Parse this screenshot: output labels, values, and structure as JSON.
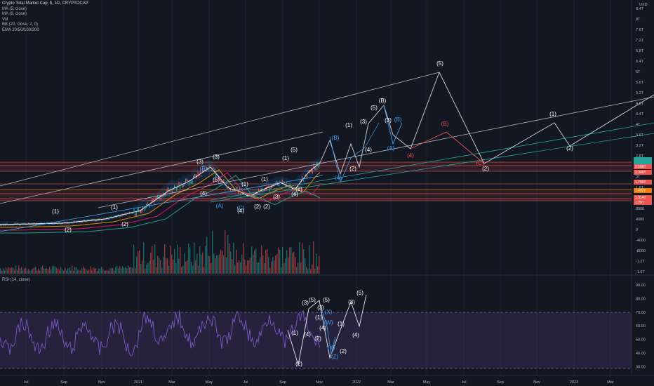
{
  "legend": {
    "symbol": "Crypto Total Market Cap, $, 1D, CRYPTOCAP",
    "indicators": [
      "MA (5, close)",
      "MA (8, close)",
      "Vol",
      "BB (20, close, 2, 0)",
      "EMA 20/50/100/200"
    ]
  },
  "rsi": {
    "label": "RSI (14, close)"
  },
  "price_axis": {
    "currency": "USD",
    "ticks": [
      "8.4T",
      "8T",
      "7.6T",
      "7.2T",
      "6.8T",
      "6.4T",
      "6T",
      "5.6T",
      "5.2T",
      "4.8T",
      "4.4T",
      "4T",
      "3.6T",
      "3.2T",
      "2.8T",
      "2.4T",
      "2T",
      "1.6T",
      "1.2T",
      "8000",
      "4000",
      "0",
      "-4000",
      "-8000",
      "-1.2T",
      "-1.6T"
    ],
    "badges": [
      {
        "text": "2.588T",
        "color": "#ef5350"
      },
      {
        "text": "2.349T",
        "color": "#ef5350"
      },
      {
        "text": "1.755T",
        "color": "#ef5350"
      },
      {
        "text": "1.482T",
        "color": "#f57c00"
      },
      {
        "text": "1.314T",
        "color": "#ef5350"
      },
      {
        "text": "1.29T",
        "color": "#ef5350"
      }
    ],
    "current_color": "#26a69a"
  },
  "rsi_axis": {
    "ticks": [
      "90.00",
      "80.00",
      "70.00",
      "60.00",
      "50.00",
      "40.00",
      "30.00"
    ]
  },
  "time_axis": {
    "ticks": [
      "Jul",
      "Sep",
      "Nov",
      "2021",
      "Mar",
      "May",
      "Jul",
      "Sep",
      "Nov",
      "2022",
      "Mar",
      "May",
      "Jul",
      "Sep",
      "Nov",
      "2023",
      "Mar"
    ]
  },
  "wave_labels": {
    "price": [
      {
        "t": "(1)",
        "c": "#ffffff"
      },
      {
        "t": "(2)",
        "c": "#ffffff"
      },
      {
        "t": "(1)",
        "c": "#ffffff"
      },
      {
        "t": "(2)",
        "c": "#ffffff"
      },
      {
        "t": "(3)",
        "c": "#ffffff"
      },
      {
        "t": "(3)",
        "c": "#ffffff"
      },
      {
        "t": "(B)",
        "c": "#42a5f5"
      },
      {
        "t": "(4)",
        "c": "#ffffff"
      },
      {
        "t": "(5)",
        "c": "#ffffff"
      },
      {
        "t": "(A)",
        "c": "#42a5f5"
      },
      {
        "t": "(C)",
        "c": "#42a5f5"
      },
      {
        "t": "(4)",
        "c": "#ffffff"
      },
      {
        "t": "(1)",
        "c": "#ffffff"
      },
      {
        "t": "(2)",
        "c": "#ffffff"
      },
      {
        "t": "(1)",
        "c": "#ffffff"
      },
      {
        "t": "(1)",
        "c": "#ffffff"
      },
      {
        "t": "(3)",
        "c": "#ffffff"
      },
      {
        "t": "(2)",
        "c": "#ffffff"
      },
      {
        "t": "(4)",
        "c": "#ffffff"
      },
      {
        "t": "(5)",
        "c": "#ffffff"
      },
      {
        "t": "(B)",
        "c": "#42a5f5"
      },
      {
        "t": "(1)",
        "c": "#ffffff"
      },
      {
        "t": "(2)",
        "c": "#ffffff"
      },
      {
        "t": "(3)",
        "c": "#ffffff"
      },
      {
        "t": "(4)",
        "c": "#ffffff"
      },
      {
        "t": "(5)",
        "c": "#ffffff"
      },
      {
        "t": "(B)",
        "c": "#ffffff"
      },
      {
        "t": "(3)",
        "c": "#ffffff"
      },
      {
        "t": "(B)",
        "c": "#42a5f5"
      },
      {
        "t": "(A)",
        "c": "#42a5f5"
      },
      {
        "t": "(4)",
        "c": "#ef5350"
      },
      {
        "t": "(5)",
        "c": "#ffffff"
      },
      {
        "t": "(B)",
        "c": "#ef5350"
      },
      {
        "t": "(C)",
        "c": "#ef5350"
      },
      {
        "t": "(2)",
        "c": "#ffffff"
      },
      {
        "t": "(1)",
        "c": "#ffffff"
      },
      {
        "t": "(2)",
        "c": "#ffffff"
      },
      {
        "t": "(2)",
        "c": "#ffffff"
      },
      {
        "t": "(4)",
        "c": "#42a5f5"
      }
    ],
    "rsi": [
      {
        "t": "(1)",
        "c": "#ffffff"
      },
      {
        "t": "(2)",
        "c": "#ffffff"
      },
      {
        "t": "(3)",
        "c": "#ffffff"
      },
      {
        "t": "(4)",
        "c": "#ffffff"
      },
      {
        "t": "(5)",
        "c": "#ffffff"
      },
      {
        "t": "(1)",
        "c": "#ffffff"
      },
      {
        "t": "(2)",
        "c": "#ffffff"
      },
      {
        "t": "(3)",
        "c": "#ffffff"
      },
      {
        "t": "(4)",
        "c": "#ffffff"
      },
      {
        "t": "(5)",
        "c": "#ffffff"
      },
      {
        "t": "(X)",
        "c": "#42a5f5"
      },
      {
        "t": "(W)",
        "c": "#42a5f5"
      },
      {
        "t": "(Y)",
        "c": "#42a5f5"
      },
      {
        "t": "(Z)",
        "c": "#42a5f5"
      },
      {
        "t": "(1)",
        "c": "#ffffff"
      },
      {
        "t": "(2)",
        "c": "#ffffff"
      },
      {
        "t": "(3)",
        "c": "#ffffff"
      },
      {
        "t": "(4)",
        "c": "#ffffff"
      },
      {
        "t": "(5)",
        "c": "#ffffff"
      }
    ]
  }
}
